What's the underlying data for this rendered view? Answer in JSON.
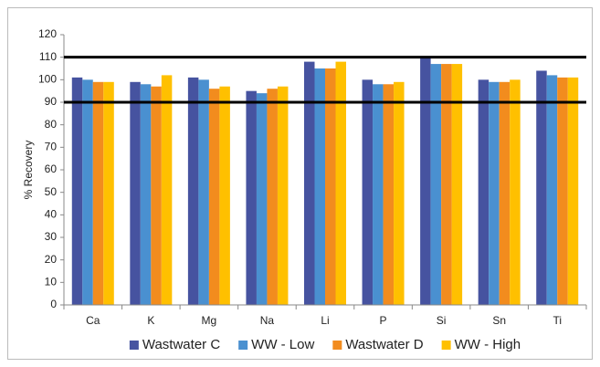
{
  "chart_data": {
    "type": "bar",
    "y_label": "% Recovery",
    "categories": [
      "Ca",
      "K",
      "Mg",
      "Na",
      "Li",
      "P",
      "Si",
      "Sn",
      "Ti"
    ],
    "series": [
      {
        "name": "Wastwater C",
        "color": "#4653a0",
        "values": [
          101,
          99,
          101,
          95,
          108,
          100,
          110,
          100,
          104
        ]
      },
      {
        "name": "WW - Low",
        "color": "#4a90d0",
        "values": [
          100,
          98,
          100,
          94,
          105,
          98,
          107,
          99,
          102
        ]
      },
      {
        "name": "Wastwater D",
        "color": "#f28c1e",
        "values": [
          99,
          97,
          96,
          96,
          105,
          98,
          107,
          99,
          101
        ]
      },
      {
        "name": "WW - High",
        "color": "#ffc000",
        "values": [
          99,
          102,
          97,
          97,
          108,
          99,
          107,
          100,
          101
        ]
      }
    ],
    "ylim": [
      0,
      120
    ],
    "yticks": [
      0,
      10,
      20,
      30,
      40,
      50,
      60,
      70,
      80,
      90,
      100,
      110,
      120
    ],
    "reference_lines": [
      90,
      110
    ],
    "grid": false,
    "legend": "bottom"
  }
}
